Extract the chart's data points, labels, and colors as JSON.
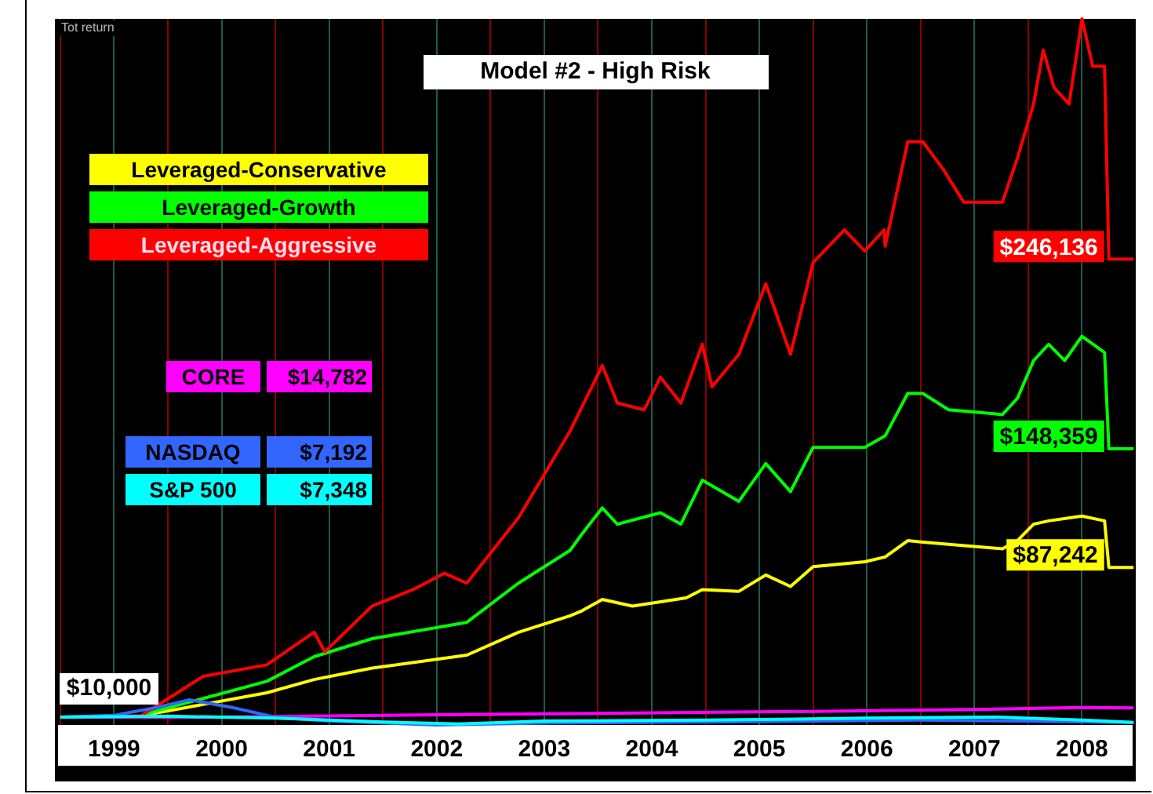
{
  "chart_data": {
    "type": "line",
    "title": "Model #2 - High Risk",
    "ylabel": "Tot return",
    "xlim": [
      1998.95,
      2009
    ],
    "xticks": [
      {
        "value": 1999,
        "label": null
      },
      {
        "value": 1999.5,
        "label": "1999"
      },
      {
        "value": 2000,
        "label": null
      },
      {
        "value": 2000.5,
        "label": "2000"
      },
      {
        "value": 2001,
        "label": null
      },
      {
        "value": 2001.5,
        "label": "2001"
      },
      {
        "value": 2002,
        "label": null
      },
      {
        "value": 2002.5,
        "label": "2002"
      },
      {
        "value": 2003,
        "label": null
      },
      {
        "value": 2003.5,
        "label": "2003"
      },
      {
        "value": 2004,
        "label": null
      },
      {
        "value": 2004.5,
        "label": "2004"
      },
      {
        "value": 2005,
        "label": null
      },
      {
        "value": 2005.5,
        "label": "2005"
      },
      {
        "value": 2006,
        "label": null
      },
      {
        "value": 2006.5,
        "label": "2006"
      },
      {
        "value": 2007,
        "label": null
      },
      {
        "value": 2007.5,
        "label": "2007"
      },
      {
        "value": 2008,
        "label": null
      },
      {
        "value": 2008.5,
        "label": "2008"
      }
    ],
    "tick_labels": "x",
    "grid": "x",
    "legend": "left",
    "marker": "none",
    "line_style": "solid",
    "annotations": [
      {
        "text": "$10,000",
        "x": 1999,
        "y": 10000
      },
      "$14,782",
      "$7,192",
      "$7,348"
    ],
    "series": [
      {
        "name": "Leveraged-Conservative",
        "color": "#ffff00",
        "x": [
          1999,
          1999.75,
          1999.85,
          2000.92,
          2001.36,
          2001.9,
          2002.78,
          2003.26,
          2003.74,
          2003.85,
          2004.04,
          2004.32,
          2004.82,
          2004.97,
          2005.31,
          2005.56,
          2005.79,
          2006,
          2006.48,
          2006.67,
          2006.88,
          2007.02,
          2007.76,
          2007.9,
          2008.05,
          2008.19,
          2008.5,
          2008.71,
          2008.75,
          2008.98
        ],
        "values": [
          10000,
          10000,
          11700,
          22600,
          29400,
          35300,
          42000,
          53800,
          62300,
          64800,
          70700,
          67300,
          71500,
          75800,
          74900,
          83300,
          77400,
          87600,
          90100,
          92600,
          101000,
          100200,
          96800,
          101000,
          109500,
          111200,
          113700,
          111200,
          87242,
          87242
        ],
        "value_labels": [
          null,
          null,
          null,
          null,
          null,
          null,
          null,
          null,
          null,
          null,
          null,
          null,
          null,
          null,
          null,
          null,
          null,
          null,
          null,
          null,
          null,
          null,
          null,
          null,
          null,
          null,
          null,
          null,
          "$87,242",
          null
        ]
      },
      {
        "name": "Leveraged-Growth",
        "color": "#00ff00",
        "x": [
          1999,
          1999.75,
          1999.85,
          2000.92,
          2001.36,
          2001.9,
          2002.78,
          2003.26,
          2003.74,
          2003.85,
          2004.04,
          2004.18,
          2004.58,
          2004.77,
          2004.97,
          2005.31,
          2005.56,
          2005.79,
          2006,
          2006.48,
          2006.67,
          2006.88,
          2007.02,
          2007.26,
          2007.76,
          2007.9,
          2008.05,
          2008.19,
          2008.34,
          2008.5,
          2008.71,
          2008.75,
          2008.98
        ],
        "values": [
          10000,
          10000,
          12500,
          28500,
          41200,
          50500,
          58900,
          79100,
          96000,
          104400,
          117900,
          109500,
          115400,
          109500,
          132200,
          121300,
          140700,
          126300,
          149100,
          149100,
          155000,
          176900,
          176900,
          168500,
          166000,
          174400,
          193800,
          202200,
          193800,
          206400,
          198000,
          148359,
          148359
        ],
        "value_labels": [
          null,
          null,
          null,
          null,
          null,
          null,
          null,
          null,
          null,
          null,
          null,
          null,
          null,
          null,
          null,
          null,
          null,
          null,
          null,
          null,
          null,
          null,
          null,
          null,
          null,
          null,
          null,
          null,
          null,
          null,
          null,
          "$148,359",
          null
        ]
      },
      {
        "name": "Leveraged-Aggressive",
        "color": "#ff0000",
        "x": [
          1999,
          1999.75,
          1999.85,
          2000.33,
          2000.92,
          2001.36,
          2001.46,
          2001.9,
          2002.28,
          2002.57,
          2002.78,
          2003.26,
          2003.74,
          2004.04,
          2004.18,
          2004.43,
          2004.58,
          2004.77,
          2004.97,
          2005.06,
          2005.31,
          2005.56,
          2005.79,
          2006,
          2006.29,
          2006.48,
          2006.66,
          2006.67,
          2006.88,
          2007.02,
          2007.21,
          2007.4,
          2007.76,
          2007.9,
          2008.05,
          2008.14,
          2008.24,
          2008.38,
          2008.5,
          2008.6,
          2008.71,
          2008.75,
          2008.98
        ],
        "values": [
          10000,
          10800,
          14200,
          31100,
          37000,
          53800,
          43700,
          67300,
          75800,
          84200,
          79100,
          112800,
          157500,
          191200,
          171900,
          168500,
          185300,
          171900,
          202200,
          180300,
          197100,
          233400,
          197100,
          244400,
          261200,
          250300,
          261200,
          252800,
          306700,
          306700,
          292400,
          275500,
          275500,
          298300,
          326100,
          353900,
          334600,
          326100,
          370000,
          345500,
          345500,
          246136,
          246136
        ],
        "value_labels": [
          null,
          null,
          null,
          null,
          null,
          null,
          null,
          null,
          null,
          null,
          null,
          null,
          null,
          null,
          null,
          null,
          null,
          null,
          null,
          null,
          null,
          null,
          null,
          null,
          null,
          null,
          null,
          null,
          null,
          null,
          null,
          null,
          null,
          null,
          null,
          null,
          null,
          null,
          null,
          null,
          null,
          "$246,136",
          null
        ]
      },
      {
        "name": "CORE",
        "color": "#ff00ff",
        "x": [
          1999,
          2000.5,
          2002,
          2004,
          2006,
          2007.5,
          2008.5,
          2008.98
        ],
        "values": [
          10000,
          10000,
          11000,
          12000,
          13000,
          14000,
          15000,
          14782
        ]
      },
      {
        "name": "NASDAQ",
        "color": "#3366ff",
        "x": [
          1999,
          1999.5,
          1999.9,
          2000.2,
          2000.6,
          2001,
          2001.5,
          2002.5,
          2003.5,
          2005,
          2007,
          2008,
          2008.98
        ],
        "values": [
          10000,
          11000,
          15000,
          19000,
          15000,
          10000,
          8000,
          6000,
          7000,
          7500,
          8500,
          8000,
          7192
        ]
      },
      {
        "name": "S&P 500",
        "color": "#00ffff",
        "x": [
          1999,
          2000,
          2001,
          2002,
          2002.7,
          2003.5,
          2005,
          2006.5,
          2007.7,
          2008.5,
          2008.98
        ],
        "values": [
          10000,
          10500,
          9500,
          7500,
          6500,
          8000,
          8500,
          9500,
          10000,
          8500,
          7348
        ]
      }
    ]
  }
}
